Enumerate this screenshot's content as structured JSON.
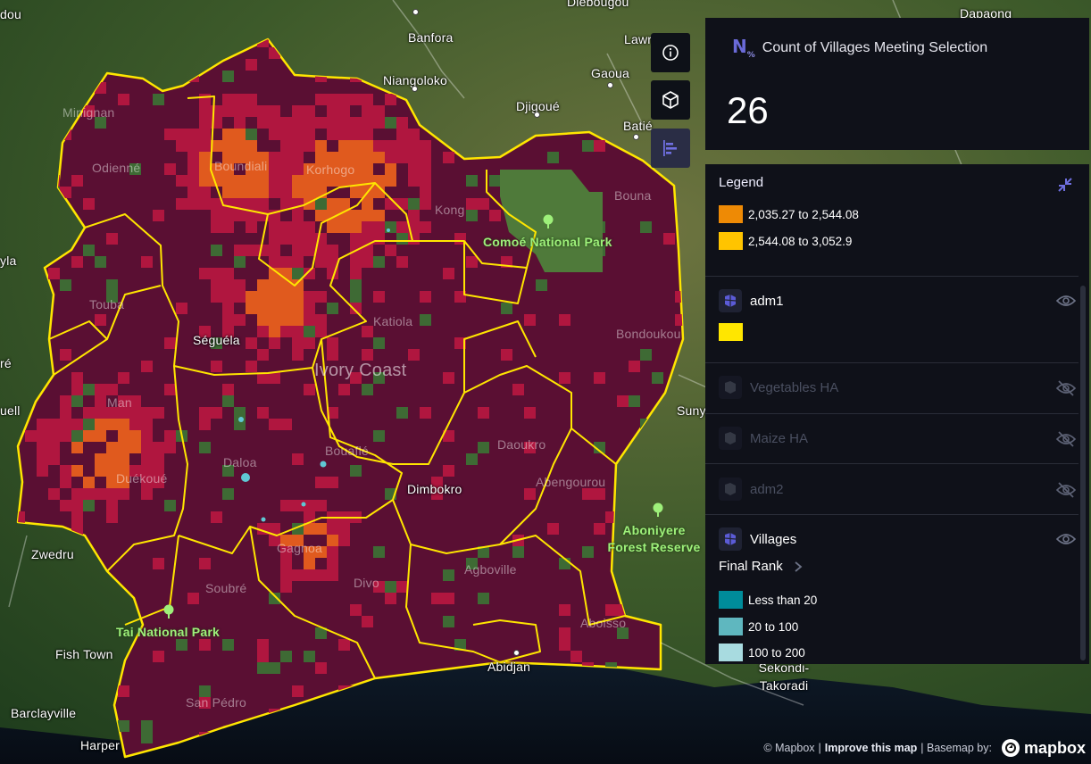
{
  "map": {
    "labels": {
      "places": [
        {
          "name": "Banfora"
        },
        {
          "name": "Niangoloko"
        },
        {
          "name": "Gaoua"
        },
        {
          "name": "Djigoué"
        },
        {
          "name": "Batié"
        },
        {
          "name": "Dapaong"
        },
        {
          "name": "Diebougou"
        },
        {
          "name": "Lawra"
        },
        {
          "name": "Odienné"
        },
        {
          "name": "Boundiali"
        },
        {
          "name": "Korhogo"
        },
        {
          "name": "Kong"
        },
        {
          "name": "Bouna"
        },
        {
          "name": "Séguéla"
        },
        {
          "name": "Katiola"
        },
        {
          "name": "Bondoukou"
        },
        {
          "name": "Man"
        },
        {
          "name": "Daloa"
        },
        {
          "name": "Bouaflé"
        },
        {
          "name": "Duékoué"
        },
        {
          "name": "Dimbokro"
        },
        {
          "name": "Daoukro"
        },
        {
          "name": "Abengourou"
        },
        {
          "name": "Gagnoa"
        },
        {
          "name": "Soubré"
        },
        {
          "name": "Divo"
        },
        {
          "name": "Agboville"
        },
        {
          "name": "Aboisso"
        },
        {
          "name": "Abidjan"
        },
        {
          "name": "San Pédro"
        },
        {
          "name": "Zwedru"
        },
        {
          "name": "Fish Town"
        },
        {
          "name": "Barclayville"
        },
        {
          "name": "Harper"
        },
        {
          "name": "Sunyani"
        },
        {
          "name": "Sekondi-Takoradi"
        },
        {
          "name": "Touba"
        },
        {
          "name": "Minignan"
        },
        {
          "name": "Tai National Park"
        }
      ],
      "parks": [
        "Comoé National Park",
        "Aboniyere Forest Reserve"
      ],
      "country": "Ivory Coast",
      "edge_labels": [
        "dou",
        "ylа",
        "ré",
        "uell"
      ]
    }
  },
  "tools": {
    "info_icon": "info-icon",
    "cube_icon": "3d-cube-icon",
    "chart_icon": "bar-chart-icon"
  },
  "stat_card": {
    "logo": "N",
    "logo_sub": "%",
    "title": "Count of Villages Meeting Selection",
    "value": "26"
  },
  "legend": {
    "header": "Legend",
    "top_swatches": [
      {
        "label": "2,035.27 to 2,544.08",
        "color": "#ee8a05"
      },
      {
        "label": "2,544.08 to 3,052.9",
        "color": "#ffc400"
      }
    ],
    "layers": [
      {
        "name": "adm1",
        "visible": true,
        "swatch_color": "#ffe600"
      },
      {
        "name": "Vegetables HA",
        "visible": false
      },
      {
        "name": "Maize HA",
        "visible": false
      },
      {
        "name": "adm2",
        "visible": false
      },
      {
        "name": "Villages",
        "visible": true
      }
    ],
    "villages": {
      "attribute_label": "Final Rank",
      "swatches": [
        {
          "label": "Less than 20",
          "color": "#008c9a"
        },
        {
          "label": "20 to 100",
          "color": "#5fb7bf"
        },
        {
          "label": "100 to 200",
          "color": "#a8dbe0"
        }
      ]
    }
  },
  "attribution": {
    "copyright": "© Mapbox",
    "separator": "|",
    "improve": "Improve this map",
    "basemap": "| Basemap by:",
    "logo_text": "mapbox"
  },
  "colors": {
    "choropleth_base": "#5a0f33",
    "choropleth_mid": "#b0163f",
    "choropleth_high": "#e05a1e",
    "boundary": "#ffe600",
    "panel_bg": "#0f1119",
    "accent": "#5b5bd6"
  }
}
